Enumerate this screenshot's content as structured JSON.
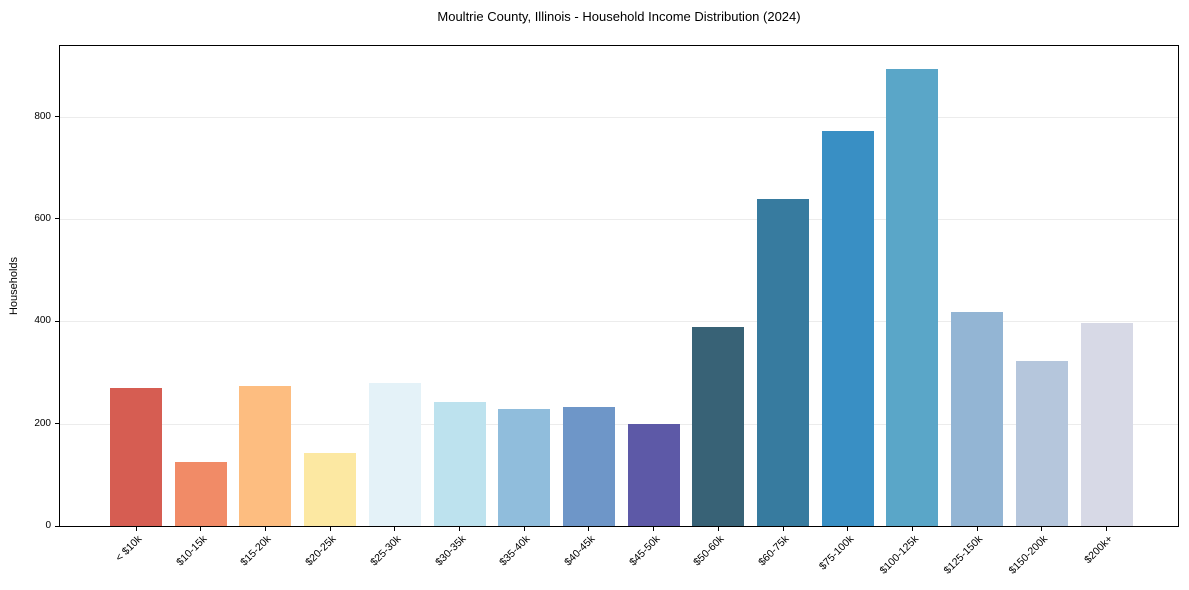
{
  "chart_data": {
    "type": "bar",
    "title": "Moultrie County, Illinois - Household Income Distribution (2024)",
    "xlabel": "",
    "ylabel": "Households",
    "categories": [
      "< $10k",
      "$10-15k",
      "$15-20k",
      "$20-25k",
      "$25-30k",
      "$30-35k",
      "$35-40k",
      "$40-45k",
      "$45-50k",
      "$50-60k",
      "$60-75k",
      "$75-100k",
      "$100-125k",
      "$125-150k",
      "$150-200k",
      "$200k+"
    ],
    "values": [
      270,
      125,
      273,
      142,
      279,
      242,
      228,
      232,
      200,
      388,
      640,
      772,
      893,
      419,
      322,
      396
    ],
    "bar_colors": [
      "#d65d52",
      "#f18b67",
      "#fdbd80",
      "#fce8a2",
      "#e4f2f8",
      "#bde2ee",
      "#90bddc",
      "#6e96c8",
      "#5d59a7",
      "#386276",
      "#377b9f",
      "#398fc4",
      "#5aa6c8",
      "#93b5d4",
      "#b5c6dc",
      "#d7d9e6"
    ],
    "ylim": [
      0,
      938
    ],
    "yticks": [
      0,
      200,
      400,
      600,
      800
    ],
    "grid": "horizontal",
    "gridline_color": "#ececec",
    "axis_color": "#000000",
    "background_color": "#ffffff",
    "legend": "none"
  }
}
